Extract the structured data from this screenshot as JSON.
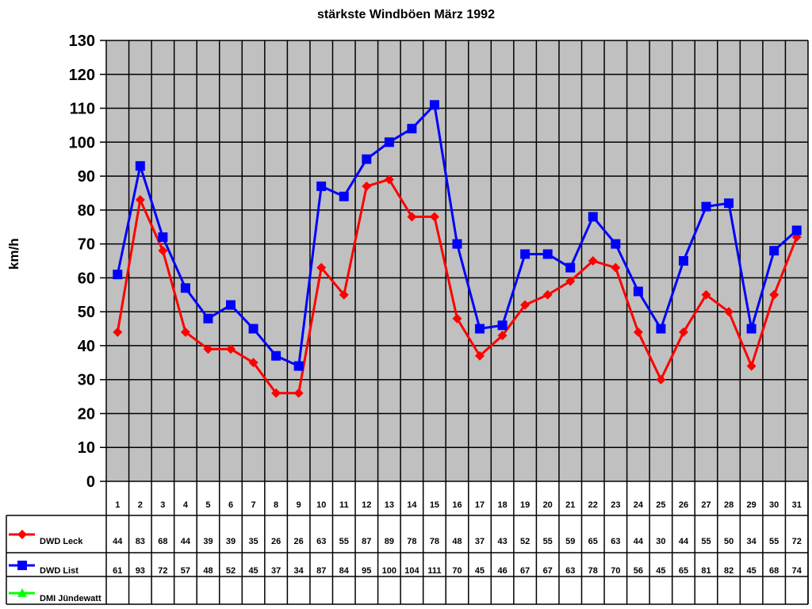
{
  "chart_data": {
    "type": "line",
    "title": "stärkste Windböen März 1992",
    "xlabel": "",
    "ylabel": "km/h",
    "ylim": [
      0,
      130
    ],
    "yticks": [
      0,
      10,
      20,
      30,
      40,
      50,
      60,
      70,
      80,
      90,
      100,
      110,
      120,
      130
    ],
    "grid": true,
    "plot_background": "#c0c0c0",
    "legend_position": "data-table-left",
    "categories": [
      "1",
      "2",
      "3",
      "4",
      "5",
      "6",
      "7",
      "8",
      "9",
      "10",
      "11",
      "12",
      "13",
      "14",
      "15",
      "16",
      "17",
      "18",
      "19",
      "20",
      "21",
      "22",
      "23",
      "24",
      "25",
      "26",
      "27",
      "28",
      "29",
      "30",
      "31"
    ],
    "series": [
      {
        "name": "DWD Leck",
        "color": "#ff0000",
        "marker": "diamond",
        "values": [
          44,
          83,
          68,
          44,
          39,
          39,
          35,
          26,
          26,
          63,
          55,
          87,
          89,
          78,
          78,
          48,
          37,
          43,
          52,
          55,
          59,
          65,
          63,
          44,
          30,
          44,
          55,
          50,
          34,
          55,
          72
        ]
      },
      {
        "name": "DWD List",
        "color": "#0000ff",
        "marker": "square",
        "values": [
          61,
          93,
          72,
          57,
          48,
          52,
          45,
          37,
          34,
          87,
          84,
          95,
          100,
          104,
          111,
          70,
          45,
          46,
          67,
          67,
          63,
          78,
          70,
          56,
          45,
          65,
          81,
          82,
          45,
          68,
          74
        ]
      },
      {
        "name": "DMI Jündewatt",
        "color": "#00ff00",
        "marker": "triangle",
        "values": [
          null,
          null,
          null,
          null,
          null,
          null,
          null,
          null,
          null,
          null,
          null,
          null,
          null,
          null,
          null,
          null,
          null,
          null,
          null,
          null,
          null,
          null,
          null,
          null,
          null,
          null,
          null,
          null,
          null,
          null,
          null
        ]
      }
    ]
  }
}
